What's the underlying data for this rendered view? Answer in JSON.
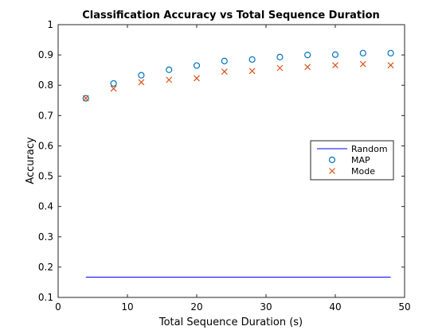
{
  "chart_data": {
    "type": "scatter",
    "title": "Classification Accuracy vs Total Sequence Duration",
    "xlabel": "Total Sequence Duration (s)",
    "ylabel": "Accuracy",
    "xlim": [
      0,
      50
    ],
    "ylim": [
      0.1,
      1
    ],
    "xticks": [
      0,
      10,
      20,
      30,
      40,
      50
    ],
    "yticks": [
      0.1,
      0.2,
      0.3,
      0.4,
      0.5,
      0.6,
      0.7,
      0.8,
      0.9,
      1
    ],
    "xtick_labels": [
      "0",
      "10",
      "20",
      "30",
      "40",
      "50"
    ],
    "ytick_labels": [
      "0.1",
      "0.2",
      "0.3",
      "0.4",
      "0.5",
      "0.6",
      "0.7",
      "0.8",
      "0.9",
      "1"
    ],
    "grid": false,
    "legend_position": "right-center",
    "series": [
      {
        "name": "Random",
        "kind": "line",
        "color": "#0000ff",
        "x": [
          4,
          48
        ],
        "y": [
          0.167,
          0.167
        ]
      },
      {
        "name": "MAP",
        "kind": "circle",
        "color": "#0072bd",
        "x": [
          4,
          8,
          12,
          16,
          20,
          24,
          28,
          32,
          36,
          40,
          44,
          48
        ],
        "y": [
          0.757,
          0.806,
          0.833,
          0.851,
          0.865,
          0.88,
          0.885,
          0.893,
          0.9,
          0.901,
          0.906,
          0.906
        ]
      },
      {
        "name": "Mode",
        "kind": "cross",
        "color": "#d95319",
        "x": [
          4,
          8,
          12,
          16,
          20,
          24,
          28,
          32,
          36,
          40,
          44,
          48
        ],
        "y": [
          0.757,
          0.789,
          0.81,
          0.818,
          0.823,
          0.845,
          0.847,
          0.857,
          0.86,
          0.866,
          0.87,
          0.866
        ]
      }
    ]
  }
}
